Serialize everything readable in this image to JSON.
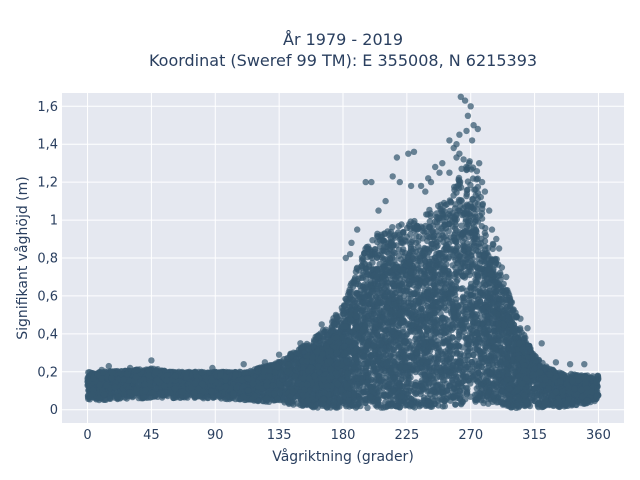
{
  "chart_data": {
    "type": "scatter",
    "title": "År 1979 - 2019",
    "subtitle": "Koordinat (Sweref 99 TM): E 355008, N 6215393",
    "xlabel": "Vågriktning (grader)",
    "ylabel": "Signifikant våghöjd (m)",
    "xlim": [
      -18,
      378
    ],
    "ylim": [
      -0.07,
      1.67
    ],
    "xticks": [
      0,
      45,
      90,
      135,
      180,
      225,
      270,
      315,
      360
    ],
    "xtick_labels": [
      "0",
      "45",
      "90",
      "135",
      "180",
      "225",
      "270",
      "315",
      "360"
    ],
    "yticks": [
      0,
      0.2,
      0.4,
      0.6,
      0.8,
      1.0,
      1.2,
      1.4,
      1.6
    ],
    "ytick_labels": [
      "0",
      "0,2",
      "0,4",
      "0,6",
      "0,8",
      "1",
      "1,2",
      "1,4",
      "1,6"
    ],
    "grid": true,
    "legend": "none",
    "marker_color": "#34586f",
    "plot_background": "#e5e8f0",
    "envelope": {
      "x": [
        0,
        10,
        30,
        45,
        60,
        90,
        110,
        130,
        140,
        150,
        160,
        170,
        180,
        190,
        200,
        210,
        220,
        230,
        240,
        250,
        260,
        265,
        270,
        275,
        280,
        290,
        300,
        310,
        320,
        330,
        340,
        350,
        360
      ],
      "y_max": [
        0.2,
        0.2,
        0.21,
        0.22,
        0.2,
        0.2,
        0.2,
        0.24,
        0.28,
        0.33,
        0.38,
        0.45,
        0.55,
        0.75,
        0.92,
        0.95,
        0.98,
        1.0,
        1.05,
        1.1,
        1.2,
        1.3,
        1.35,
        1.25,
        1.05,
        0.75,
        0.55,
        0.35,
        0.25,
        0.2,
        0.19,
        0.18,
        0.18
      ],
      "y_min": [
        0.05,
        0.05,
        0.06,
        0.06,
        0.06,
        0.06,
        0.05,
        0.04,
        0.03,
        0.02,
        0.01,
        0.01,
        0.01,
        0.01,
        0.01,
        0.01,
        0.01,
        0.01,
        0.01,
        0.01,
        0.02,
        0.03,
        0.04,
        0.04,
        0.03,
        0.02,
        0.01,
        0.01,
        0.01,
        0.01,
        0.02,
        0.03,
        0.05
      ]
    },
    "outliers": {
      "x": [
        263,
        266,
        270,
        268,
        272,
        262,
        275,
        260,
        258,
        255,
        250,
        248,
        245,
        240,
        238,
        235,
        230,
        226,
        220,
        215,
        210,
        205,
        200,
        196,
        190,
        186,
        182,
        276,
        278,
        280,
        283,
        285,
        288,
        290,
        292,
        295,
        262,
        265,
        271,
        267,
        260,
        255,
        242,
        228,
        218,
        185,
        175,
        165,
        150,
        135,
        125,
        110,
        88,
        45,
        30,
        15,
        10,
        350,
        340,
        330,
        320,
        310,
        300,
        305
      ],
      "y": [
        1.65,
        1.63,
        1.6,
        1.55,
        1.5,
        1.45,
        1.48,
        1.4,
        1.38,
        1.42,
        1.3,
        1.25,
        1.28,
        1.22,
        1.15,
        1.18,
        1.36,
        1.35,
        1.2,
        1.23,
        1.1,
        1.05,
        1.2,
        1.2,
        0.95,
        0.88,
        0.8,
        1.3,
        1.2,
        1.15,
        1.05,
        0.95,
        0.9,
        0.85,
        0.75,
        0.7,
        1.35,
        1.32,
        1.42,
        1.47,
        1.33,
        1.25,
        1.2,
        1.18,
        1.33,
        0.82,
        0.5,
        0.45,
        0.35,
        0.29,
        0.25,
        0.24,
        0.22,
        0.26,
        0.22,
        0.23,
        0.21,
        0.24,
        0.24,
        0.25,
        0.35,
        0.43,
        0.52,
        0.48
      ]
    }
  }
}
